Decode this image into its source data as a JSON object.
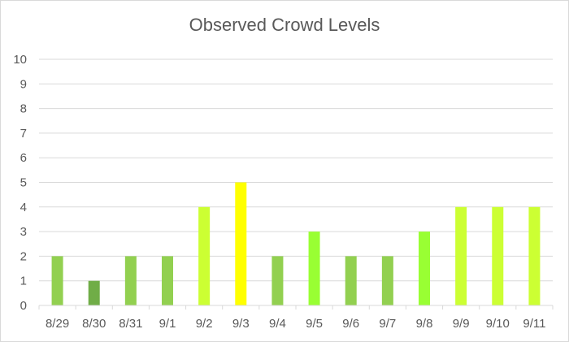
{
  "chart_data": {
    "type": "bar",
    "title": "Observed Crowd Levels",
    "xlabel": "",
    "ylabel": "",
    "categories": [
      "8/29",
      "8/30",
      "8/31",
      "9/1",
      "9/2",
      "9/3",
      "9/4",
      "9/5",
      "9/6",
      "9/7",
      "9/8",
      "9/9",
      "9/10",
      "9/11"
    ],
    "values": [
      2,
      1,
      2,
      2,
      4,
      5,
      2,
      3,
      2,
      2,
      3,
      4,
      4,
      4
    ],
    "bar_colors": [
      "#92d050",
      "#70ad47",
      "#92d050",
      "#92d050",
      "#ccff33",
      "#ffff00",
      "#92d050",
      "#99ff33",
      "#92d050",
      "#92d050",
      "#99ff33",
      "#ccff33",
      "#ccff33",
      "#ccff33"
    ],
    "ylim": [
      0,
      10
    ],
    "yticks": [
      0,
      1,
      2,
      3,
      4,
      5,
      6,
      7,
      8,
      9,
      10
    ],
    "grid": true,
    "legend": "none"
  }
}
